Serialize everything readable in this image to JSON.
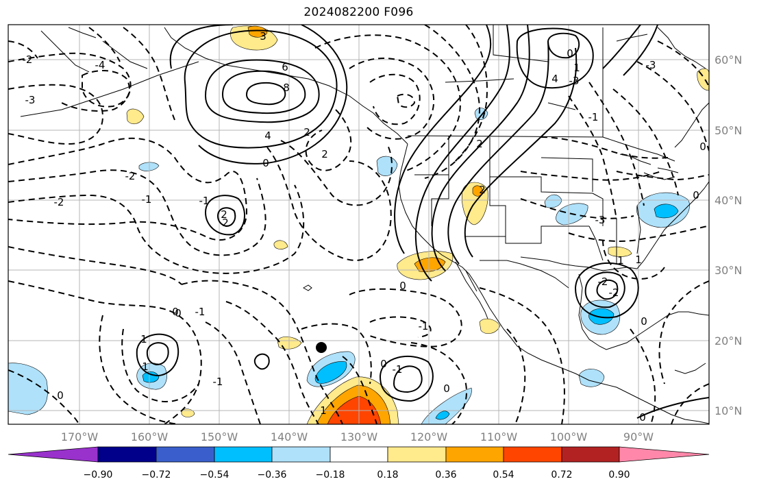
{
  "title": "2024082200 F096",
  "longitude_labels": [
    "170°W",
    "160°W",
    "150°W",
    "140°W",
    "130°W",
    "120°W",
    "110°W",
    "100°W",
    "90°W"
  ],
  "latitude_labels": [
    "60°N",
    "50°N",
    "40°N",
    "30°N",
    "20°N",
    "10°N"
  ],
  "colorbar": {
    "ticks": [
      "−0.90",
      "−0.72",
      "−0.54",
      "−0.36",
      "−0.18",
      "0.18",
      "0.36",
      "0.54",
      "0.72",
      "0.90"
    ],
    "colors": [
      "#9932cc",
      "#00008b",
      "#3a5fcd",
      "#00bfff",
      "#afe1fa",
      "#ffffff",
      "#ffea8c",
      "#ffa500",
      "#ff4500",
      "#b22222",
      "#ff88aa"
    ]
  },
  "contour_labels": [
    "3",
    "6",
    "8",
    "4",
    "0",
    "2",
    "-1",
    "2",
    "2",
    "-2",
    "-1",
    "-2",
    "-4",
    "-3",
    "-2",
    "2",
    "0",
    "-1",
    "0",
    "-1",
    "1",
    "0",
    "0",
    "1",
    "-1",
    "0",
    "2",
    "4",
    "-3",
    "0",
    "-3",
    "1",
    "-2",
    "-2",
    "0",
    "-3",
    "1",
    "2",
    "0",
    "1",
    "0",
    "0",
    "0",
    "-1",
    "-1",
    "1"
  ],
  "colors": {
    "land_border": "#000000",
    "grid": "#b4b4b4",
    "tick_label": "#808080"
  }
}
